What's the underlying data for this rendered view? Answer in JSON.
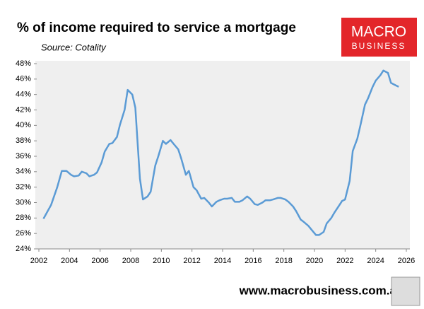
{
  "chart_data": {
    "type": "line",
    "title": "% of income required to service a mortgage",
    "subtitle": "Source: Cotality",
    "logo_top": "MACRO",
    "logo_bottom": "BUSINESS",
    "footer": "www.macrobusiness.com.au",
    "x": [
      2002.3,
      2002.8,
      2003.2,
      2003.5,
      2003.8,
      2004.1,
      2004.3,
      2004.6,
      2004.8,
      2005.1,
      2005.3,
      2005.6,
      2005.8,
      2006.1,
      2006.3,
      2006.6,
      2006.8,
      2007.1,
      2007.3,
      2007.6,
      2007.8,
      2008.1,
      2008.3,
      2008.6,
      2008.8,
      2009.1,
      2009.3,
      2009.6,
      2009.8,
      2010.1,
      2010.3,
      2010.6,
      2010.8,
      2011.1,
      2011.3,
      2011.6,
      2011.8,
      2012.1,
      2012.3,
      2012.6,
      2012.8,
      2013.1,
      2013.3,
      2013.6,
      2013.8,
      2014.1,
      2014.3,
      2014.6,
      2014.8,
      2015.1,
      2015.3,
      2015.6,
      2015.8,
      2016.1,
      2016.3,
      2016.6,
      2016.8,
      2017.1,
      2017.3,
      2017.6,
      2017.8,
      2018.1,
      2018.3,
      2018.6,
      2018.8,
      2019.1,
      2019.3,
      2019.6,
      2019.8,
      2020.1,
      2020.3,
      2020.6,
      2020.8,
      2021.1,
      2021.3,
      2021.6,
      2021.8,
      2022.0,
      2022.3,
      2022.5,
      2022.8,
      2023.0,
      2023.3,
      2023.5,
      2023.8,
      2024.0,
      2024.3,
      2024.5,
      2024.8,
      2025.0,
      2025.3,
      2025.5
    ],
    "values": [
      27.9,
      29.7,
      32.0,
      34.1,
      34.1,
      33.6,
      33.4,
      33.5,
      34.0,
      33.8,
      33.4,
      33.6,
      33.9,
      35.2,
      36.6,
      37.6,
      37.7,
      38.5,
      40.1,
      42.0,
      44.6,
      44.0,
      42.3,
      33.1,
      30.4,
      30.8,
      31.4,
      34.8,
      36.0,
      38.0,
      37.6,
      38.1,
      37.6,
      36.9,
      35.7,
      33.6,
      34.1,
      32.0,
      31.6,
      30.5,
      30.6,
      30.0,
      29.5,
      30.1,
      30.3,
      30.5,
      30.5,
      30.6,
      30.1,
      30.1,
      30.3,
      30.8,
      30.5,
      29.8,
      29.7,
      30.0,
      30.3,
      30.3,
      30.4,
      30.6,
      30.6,
      30.4,
      30.1,
      29.5,
      28.9,
      27.8,
      27.5,
      27.0,
      26.5,
      25.8,
      25.8,
      26.2,
      27.3,
      28.0,
      28.7,
      29.6,
      30.2,
      30.4,
      32.8,
      36.7,
      38.3,
      40.0,
      42.7,
      43.5,
      45.0,
      45.8,
      46.5,
      47.1,
      46.8,
      45.5,
      45.2,
      45.0
    ],
    "color": "#5b9bd5",
    "xlim": [
      2002,
      2026
    ],
    "xticks": [
      2002,
      2004,
      2006,
      2008,
      2010,
      2012,
      2014,
      2016,
      2018,
      2020,
      2022,
      2024,
      2026
    ],
    "ylim": [
      24,
      48
    ],
    "yticks": [
      {
        "value": 24,
        "label": "24%"
      },
      {
        "value": 26,
        "label": "26%"
      },
      {
        "value": 28,
        "label": "28%"
      },
      {
        "value": 30,
        "label": "30%"
      },
      {
        "value": 32,
        "label": "32%"
      },
      {
        "value": 34,
        "label": "34%"
      },
      {
        "value": 36,
        "label": "36%"
      },
      {
        "value": 38,
        "label": "38%"
      },
      {
        "value": 40,
        "label": "40%"
      },
      {
        "value": 42,
        "label": "42%"
      },
      {
        "value": 44,
        "label": "44%"
      },
      {
        "value": 46,
        "label": "46%"
      },
      {
        "value": 48,
        "label": "48%"
      }
    ],
    "grid": false
  }
}
